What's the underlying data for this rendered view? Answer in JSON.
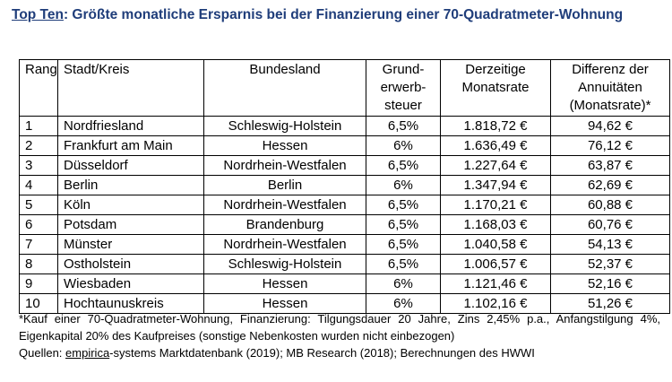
{
  "title": {
    "prefix": "Top Ten",
    "rest": ": Größte monatliche Ersparnis bei der Finanzierung einer 70-Quadratmeter-Wohnung"
  },
  "table": {
    "headers": {
      "rank": "Rang",
      "city": "Stadt/Kreis",
      "state": "Bundesland",
      "tax": "Grund- erwerb- steuer",
      "rate": "Derzeitige Monatsrate",
      "diff": "Differenz der Annuitäten (Monatsrate)*"
    },
    "rows": [
      {
        "rank": "1",
        "city": "Nordfriesland",
        "state": "Schleswig-Holstein",
        "tax": "6,5%",
        "rate": "1.818,72 €",
        "diff": "94,62 €"
      },
      {
        "rank": "2",
        "city": "Frankfurt am Main",
        "state": "Hessen",
        "tax": "6%",
        "rate": "1.636,49 €",
        "diff": "76,12 €"
      },
      {
        "rank": "3",
        "city": "Düsseldorf",
        "state": "Nordrhein-Westfalen",
        "tax": "6,5%",
        "rate": "1.227,64 €",
        "diff": "63,87 €"
      },
      {
        "rank": "4",
        "city": "Berlin",
        "state": "Berlin",
        "tax": "6%",
        "rate": "1.347,94 €",
        "diff": "62,69 €"
      },
      {
        "rank": "5",
        "city": "Köln",
        "state": "Nordrhein-Westfalen",
        "tax": "6,5%",
        "rate": "1.170,21 €",
        "diff": "60,88 €"
      },
      {
        "rank": "6",
        "city": "Potsdam",
        "state": "Brandenburg",
        "tax": "6,5%",
        "rate": "1.168,03 €",
        "diff": "60,76 €"
      },
      {
        "rank": "7",
        "city": "Münster",
        "state": "Nordrhein-Westfalen",
        "tax": "6,5%",
        "rate": "1.040,58 €",
        "diff": "54,13 €"
      },
      {
        "rank": "8",
        "city": "Ostholstein",
        "state": "Schleswig-Holstein",
        "tax": "6,5%",
        "rate": "1.006,57 €",
        "diff": "52,37 €"
      },
      {
        "rank": "9",
        "city": "Wiesbaden",
        "state": "Hessen",
        "tax": "6%",
        "rate": "1.121,46 €",
        "diff": "52,16 €"
      },
      {
        "rank": "10",
        "city": "Hochtaunuskreis",
        "state": "Hessen",
        "tax": "6%",
        "rate": "1.102,16 €",
        "diff": "51,26 €"
      }
    ]
  },
  "footnote": {
    "note": "*Kauf einer 70-Quadratmeter-Wohnung, Finanzierung: Tilgungsdauer 20 Jahre, Zins 2,45% p.a., Anfangstilgung 4%, Eigenkapital 20% des Kaufpreises (sonstige Nebenkosten wurden nicht einbezogen)",
    "sources_prefix": "Quellen: ",
    "sources_link": "empirica",
    "sources_rest": "-systems Marktdatenbank (2019); MB Research (2018); Berechnungen des HWWI"
  }
}
